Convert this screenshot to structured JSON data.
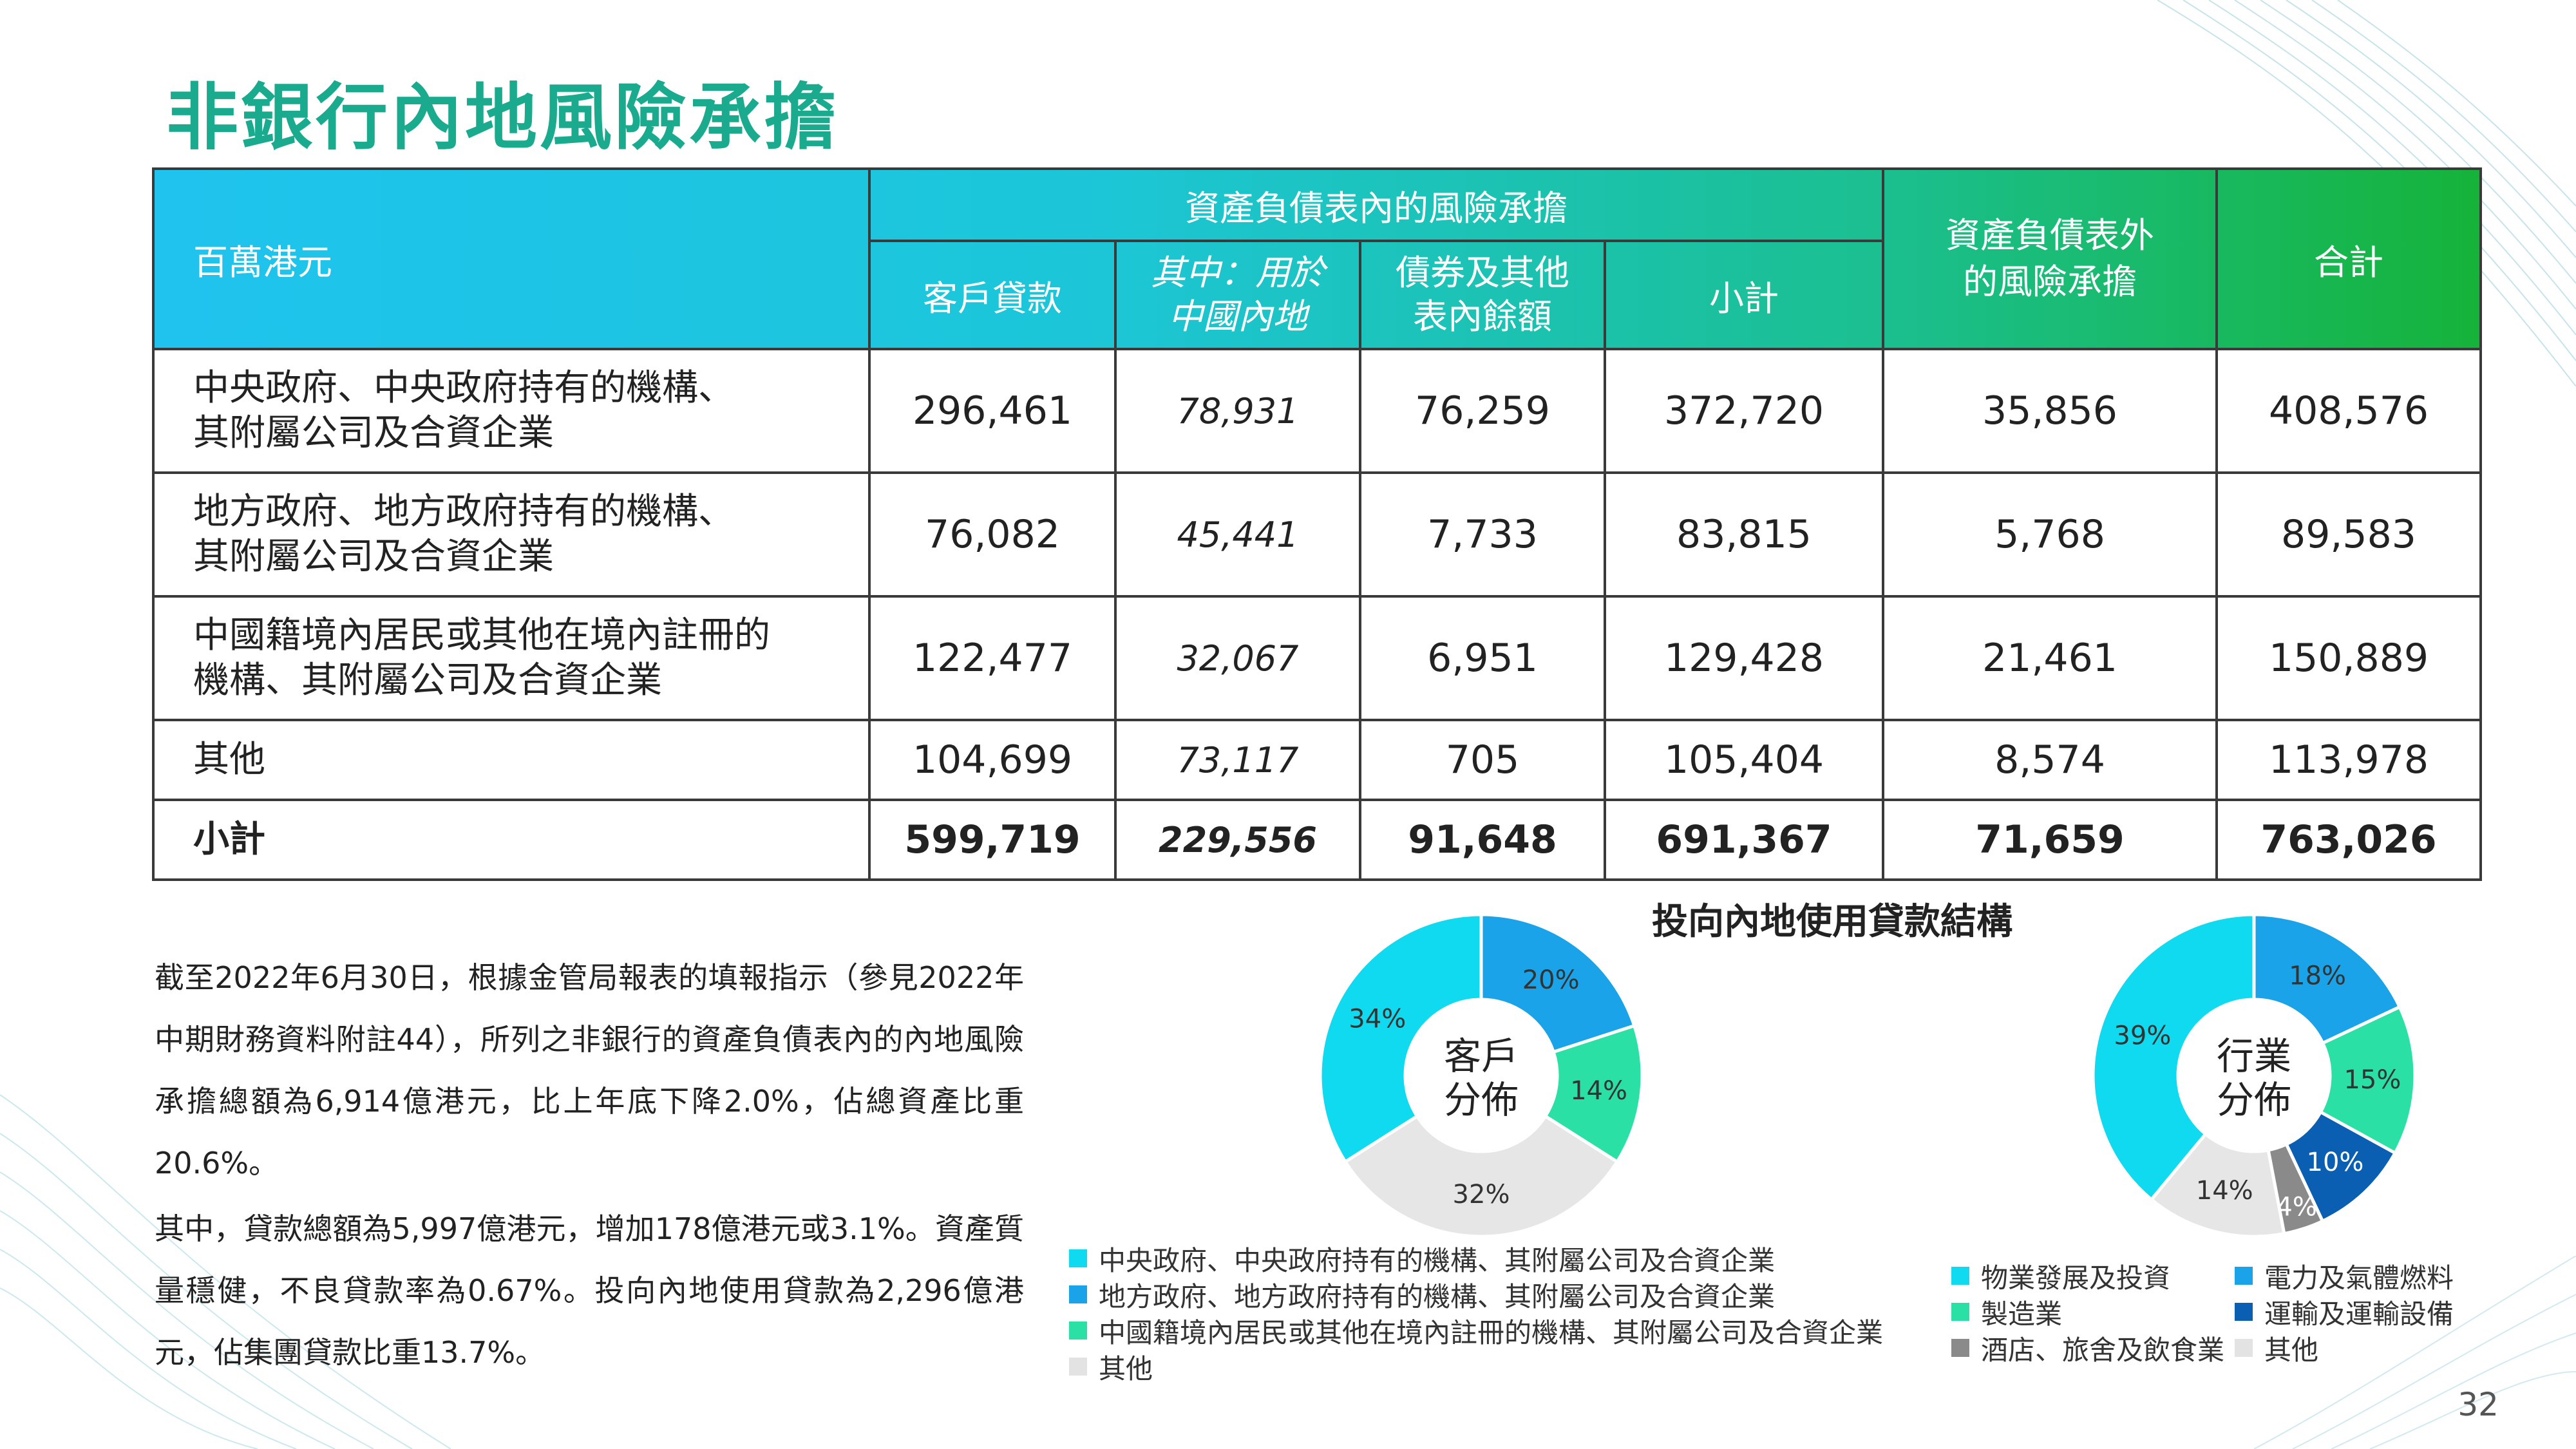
{
  "title": "非銀行內地風險承擔",
  "table": {
    "unit_label": "百萬港元",
    "on_bs_header": "資產負債表內的風險承擔",
    "off_bs_header": "資產負債表外\n的風險承擔",
    "total_header": "合計",
    "sub_headers": [
      "客戶貸款",
      "其中：用於\n中國內地",
      "債券及其他\n表內餘額",
      "小計"
    ],
    "rows": [
      {
        "label": "中央政府、中央政府持有的機構、\n其附屬公司及合資企業",
        "values": [
          "296,461",
          "78,931",
          "76,259",
          "372,720",
          "35,856",
          "408,576"
        ]
      },
      {
        "label": "地方政府、地方政府持有的機構、\n其附屬公司及合資企業",
        "values": [
          "76,082",
          "45,441",
          "7,733",
          "83,815",
          "5,768",
          "89,583"
        ]
      },
      {
        "label": "中國籍境內居民或其他在境內註冊的\n機構、其附屬公司及合資企業",
        "values": [
          "122,477",
          "32,067",
          "6,951",
          "129,428",
          "21,461",
          "150,889"
        ]
      },
      {
        "label": "其他",
        "values": [
          "104,699",
          "73,117",
          "705",
          "105,404",
          "8,574",
          "113,978"
        ]
      },
      {
        "label": "小計",
        "values": [
          "599,719",
          "229,556",
          "91,648",
          "691,367",
          "71,659",
          "763,026"
        ]
      }
    ]
  },
  "paragraphs": [
    "截至2022年6月30日，根據金管局報表的填報指示（參見2022年中期財務資料附註44），所列之非銀行的資產負債表內的內地風險承擔總額為6,914億港元，比上年底下降2.0%，佔總資產比重20.6%。",
    "其中，貸款總額為5,997億港元，增加178億港元或3.1%。資產質量穩健，不良貸款率為0.67%。投向內地使用貸款為2,296億港元，佔集團貸款比重13.7%。"
  ],
  "pie_section_title": "投向內地使用貸款結構",
  "pies": [
    {
      "center_label": "客戶\n分佈",
      "slices": [
        {
          "label": "中央政府、中央政府持有的機構、其附屬公司及合資企業",
          "value": 34,
          "text": "34%",
          "color": "#0fdaf0"
        },
        {
          "label": "地方政府、地方政府持有的機構、其附屬公司及合資企業",
          "value": 20,
          "text": "20%",
          "color": "#1aa3e8"
        },
        {
          "label": "中國籍境內居民或其他在境內註冊的機構、其附屬公司及合資企業",
          "value": 14,
          "text": "14%",
          "color": "#2be0a5"
        },
        {
          "label": "其他",
          "value": 32,
          "text": "32%",
          "color": "#e6e6e6"
        }
      ]
    },
    {
      "center_label": "行業\n分佈",
      "slices": [
        {
          "label": "物業發展及投資",
          "value": 39,
          "text": "39%",
          "color": "#0fdaf0"
        },
        {
          "label": "電力及氣體燃料",
          "value": 18,
          "text": "18%",
          "color": "#1aa3e8"
        },
        {
          "label": "製造業",
          "value": 15,
          "text": "15%",
          "color": "#2be0a5"
        },
        {
          "label": "運輸及運輸設備",
          "value": 10,
          "text": "10%",
          "color": "#0a5fb3"
        },
        {
          "label": "酒店、旅舍及飲食業",
          "value": 4,
          "text": "4%",
          "color": "#8a8a8a"
        },
        {
          "label": "其他",
          "value": 14,
          "text": "14%",
          "color": "#e6e6e6"
        }
      ]
    }
  ],
  "page_number": "32"
}
